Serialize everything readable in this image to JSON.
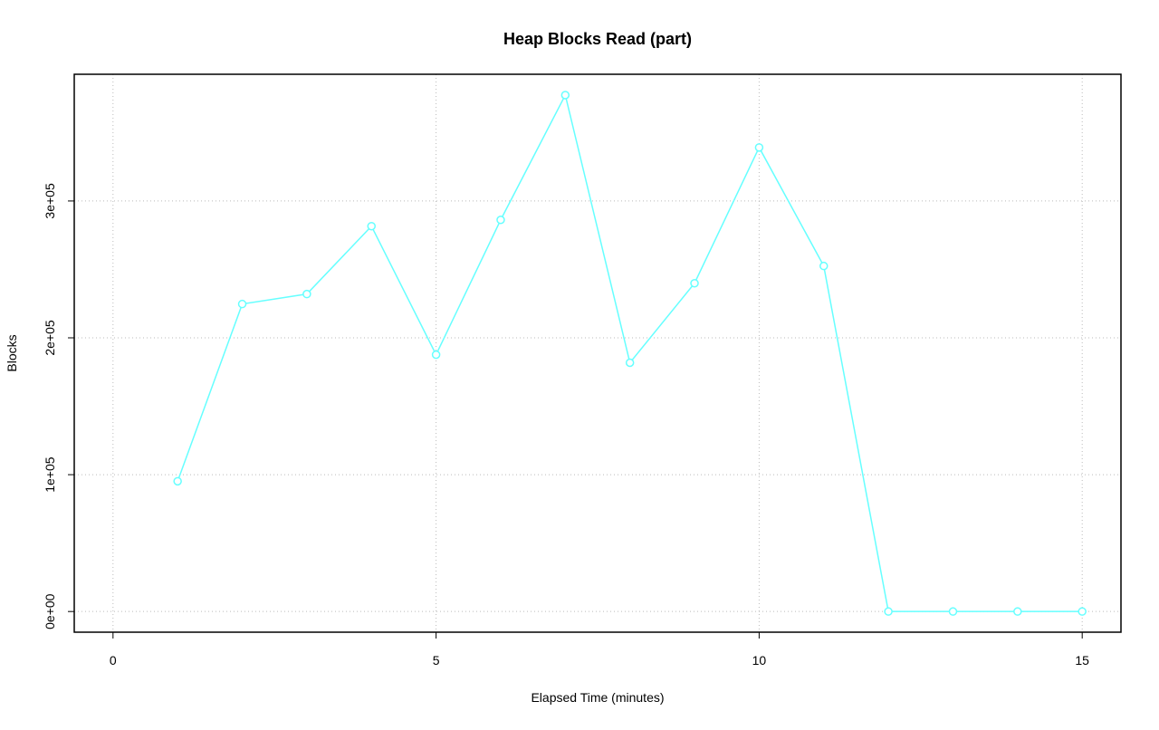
{
  "chart_data": {
    "type": "line",
    "title": "Heap Blocks Read (part)",
    "x_label": "Elapsed Time (minutes)",
    "y_label": "Blocks",
    "x": [
      1,
      2,
      3,
      4,
      5,
      6,
      7,
      8,
      9,
      10,
      11,
      12,
      13,
      14,
      15
    ],
    "series": [
      {
        "name": "Blocks",
        "color": "#66ffff",
        "values": [
          95200,
          224700,
          232000,
          281600,
          187700,
          286200,
          377400,
          181800,
          239900,
          339100,
          252500,
          0,
          0,
          0,
          0
        ]
      }
    ],
    "xlim": [
      -0.6,
      15.6
    ],
    "xticks": [
      0,
      5,
      10,
      15
    ],
    "ylim": [
      -15100,
      392600
    ],
    "yticks": [
      {
        "value": 0,
        "label": "0e+00"
      },
      {
        "value": 100000,
        "label": "1e+05"
      },
      {
        "value": 200000,
        "label": "2e+05"
      },
      {
        "value": 300000,
        "label": "3e+05"
      }
    ],
    "grid": true
  }
}
